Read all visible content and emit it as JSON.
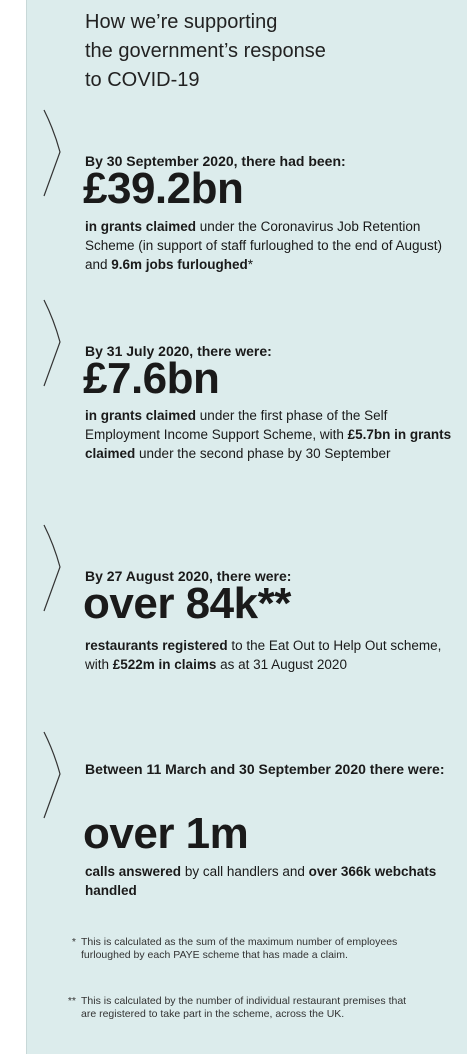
{
  "title": [
    "How we’re supporting",
    "the government’s response",
    "to COVID-19"
  ],
  "sections": [
    {
      "date": "By 30 September 2020, there had been:",
      "headline": "£39.2bn",
      "body": [
        {
          "text": "in grants claimed",
          "bold": true
        },
        {
          "text": " under the Coronavirus Job Retention Scheme (in support of staff furloughed to the end of August) and ",
          "bold": false
        },
        {
          "text": "9.6m jobs furloughed",
          "bold": true
        },
        {
          "text": "*",
          "bold": false
        }
      ]
    },
    {
      "date": "By 31 July 2020, there were:",
      "headline": "£7.6bn",
      "body": [
        {
          "text": "in grants claimed",
          "bold": true
        },
        {
          "text": " under the first phase of the Self Employment Income Support Scheme, with ",
          "bold": false
        },
        {
          "text": "£5.7bn in grants claimed",
          "bold": true
        },
        {
          "text": " under the second phase by 30 September",
          "bold": false
        }
      ]
    },
    {
      "date": "By 27 August 2020, there were:",
      "headline": "over 84k**",
      "body": [
        {
          "text": "restaurants registered",
          "bold": true
        },
        {
          "text": " to the Eat Out to Help Out scheme, with ",
          "bold": false
        },
        {
          "text": "£522m in claims",
          "bold": true
        },
        {
          "text": " as at 31 August 2020",
          "bold": false
        }
      ]
    },
    {
      "date": "Between 11 March and 30 September 2020 there were:",
      "headline": "over 1m",
      "body": [
        {
          "text": "calls answered",
          "bold": true
        },
        {
          "text": " by call handlers and ",
          "bold": false
        },
        {
          "text": "over 366k webchats handled",
          "bold": true
        }
      ]
    }
  ],
  "footnotes": [
    {
      "marker": "*",
      "text": "This is calculated as the sum of the maximum number of employees furloughed by each PAYE scheme that has made a claim."
    },
    {
      "marker": "**",
      "text": "This is calculated by the number of individual restaurant premises that are registered to take part in the scheme, across the UK."
    }
  ]
}
